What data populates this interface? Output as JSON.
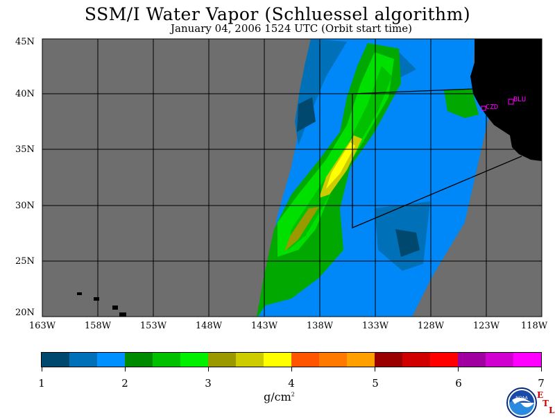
{
  "title": "SSM/I Water Vapor (Schluessel algorithm)",
  "subtitle": "January 04, 2006  1524 UTC  (Orbit start time)",
  "lat_labels": [
    "45N",
    "40N",
    "35N",
    "30N",
    "25N",
    "20N"
  ],
  "lon_labels": [
    "163W",
    "158W",
    "153W",
    "148W",
    "143W",
    "138W",
    "133W",
    "128W",
    "123W",
    "118W"
  ],
  "stations": [
    "CZD",
    "BLU"
  ],
  "colorbar": {
    "tick_labels": [
      "1",
      "2",
      "3",
      "4",
      "5",
      "6",
      "7"
    ],
    "units": "g/cm",
    "units_exp": "2",
    "colors": [
      "#00486e",
      "#0070b8",
      "#0090ff",
      "#008a00",
      "#00c000",
      "#00f000",
      "#9a9a00",
      "#cccc00",
      "#ffff00",
      "#ff5400",
      "#ff7800",
      "#ffa000",
      "#9a0000",
      "#d00000",
      "#ff0000",
      "#a000a0",
      "#d000d0",
      "#ff00ff"
    ]
  },
  "logo_text": "NOAA",
  "etl_letters": [
    "E",
    "T",
    "L"
  ],
  "map_colors": {
    "no_data": "#6e6e6e",
    "land": "#000000",
    "grid": "#000000",
    "station": "#ff00ff"
  },
  "legend_range": [
    1,
    7
  ]
}
